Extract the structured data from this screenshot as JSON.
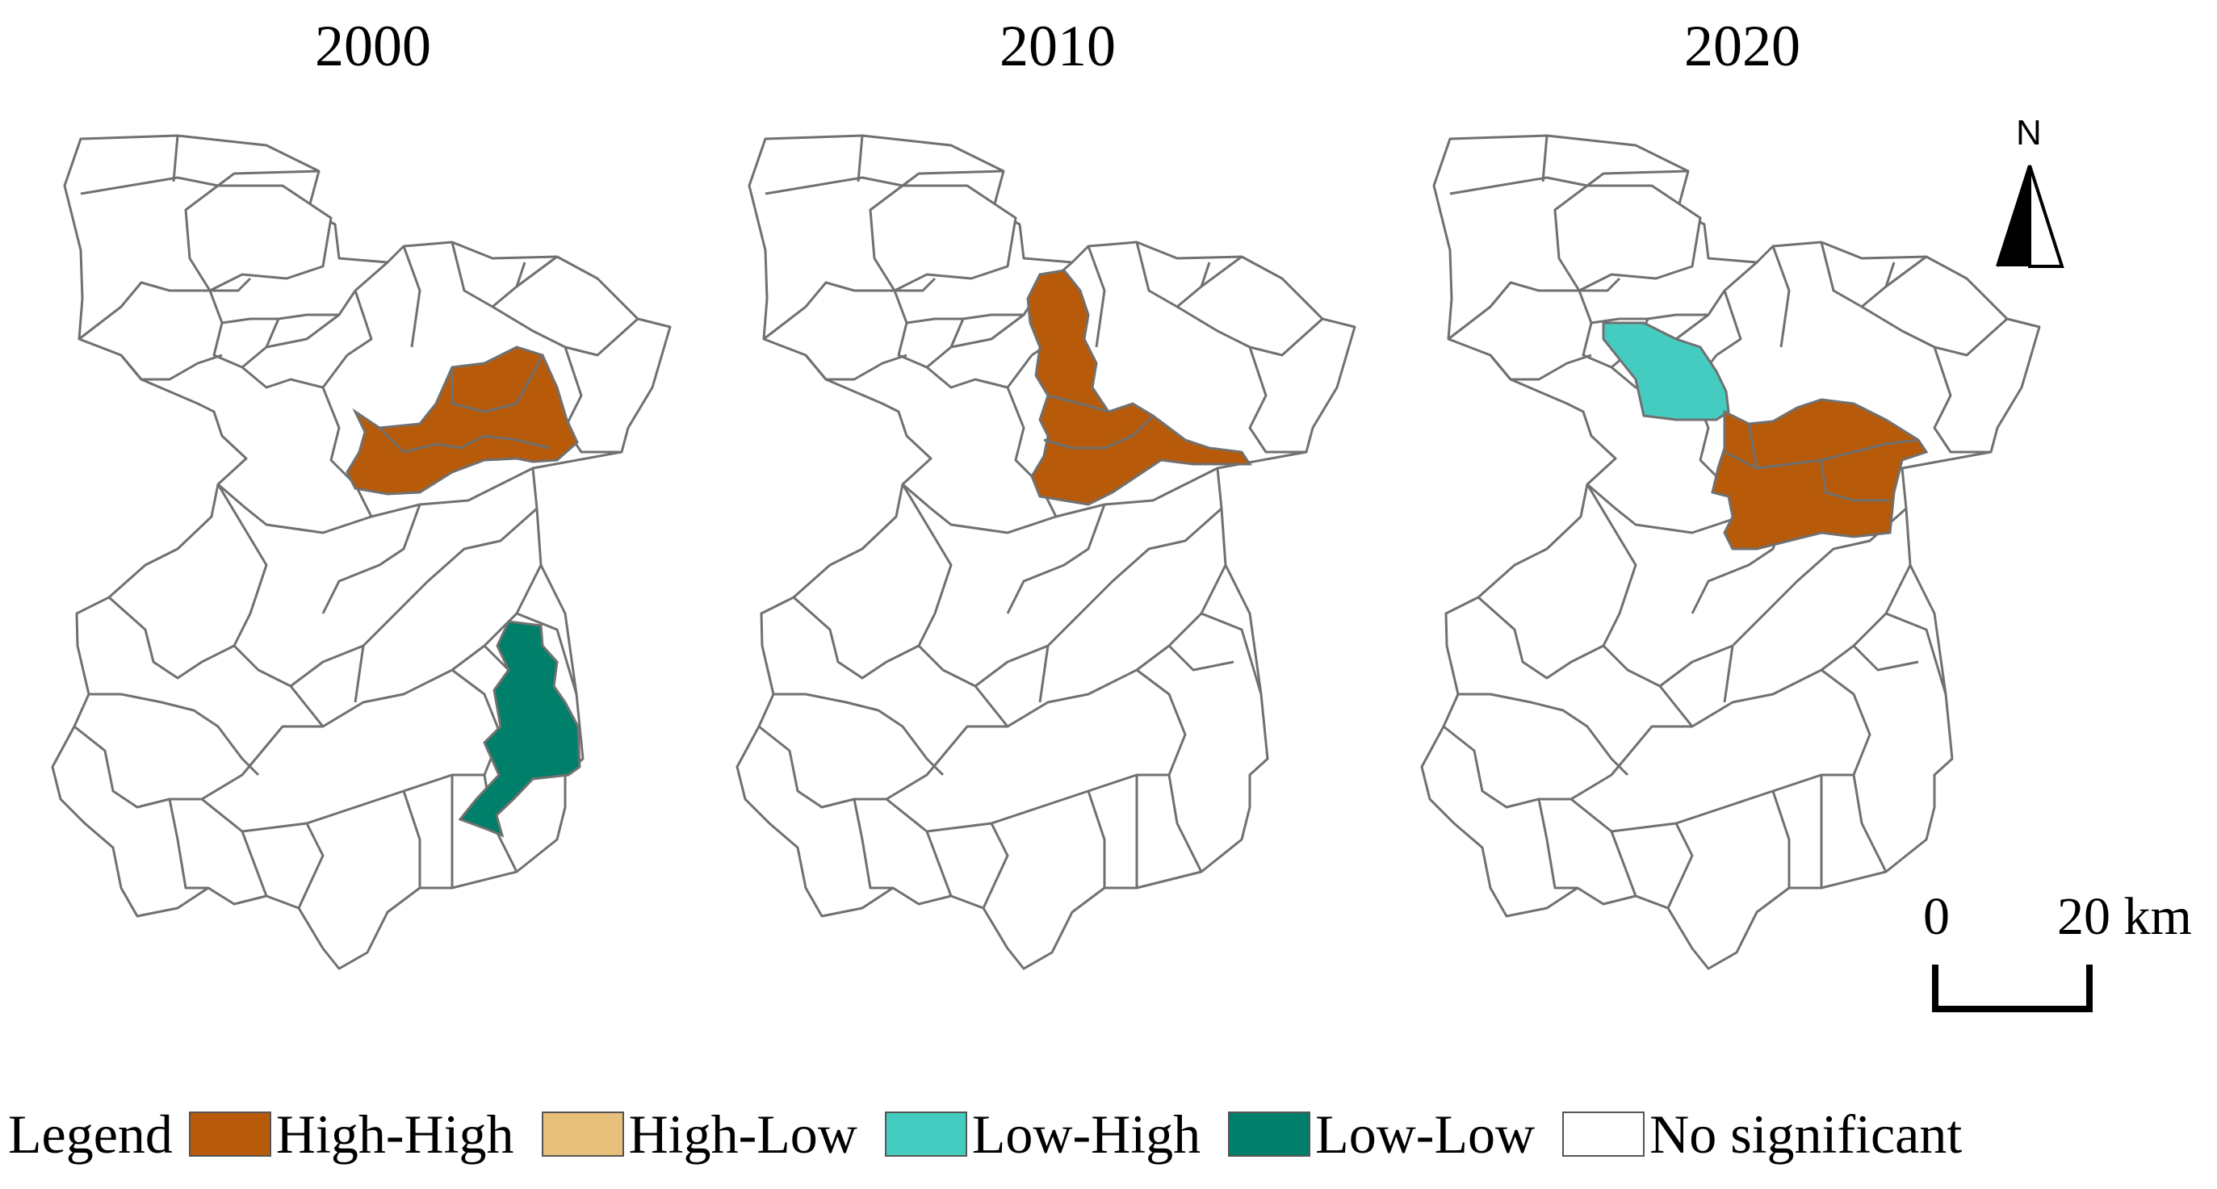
{
  "years": [
    "2000",
    "2010",
    "2020"
  ],
  "colors": {
    "high_high": "#b75b0a",
    "high_low": "#e6c07a",
    "low_high": "#45ccc0",
    "low_low": "#007f6a",
    "no_significant": "#ffffff",
    "boundary": "#707070"
  },
  "legend": {
    "title": "Legend",
    "items": [
      {
        "label": "High-High",
        "color": "#b75b0a"
      },
      {
        "label": "High-Low",
        "color": "#e6c07a"
      },
      {
        "label": "Low-High",
        "color": "#45ccc0"
      },
      {
        "label": "Low-Low",
        "color": "#007f6a"
      },
      {
        "label": "No significant",
        "color": "#ffffff"
      }
    ]
  },
  "north_arrow": {
    "label": "N",
    "icon": "north-arrow-icon"
  },
  "scale_bar": {
    "start_label": "0",
    "end_label": "20 km",
    "icon": "scale-bar-icon"
  },
  "maps": [
    {
      "year": "2000",
      "clusters": [
        {
          "type": "High-High",
          "region": "central-east"
        },
        {
          "type": "Low-Low",
          "region": "south-east"
        }
      ]
    },
    {
      "year": "2010",
      "clusters": [
        {
          "type": "High-High",
          "region": "central"
        }
      ]
    },
    {
      "year": "2020",
      "clusters": [
        {
          "type": "Low-High",
          "region": "north-central"
        },
        {
          "type": "High-High",
          "region": "east-central"
        }
      ]
    }
  ]
}
